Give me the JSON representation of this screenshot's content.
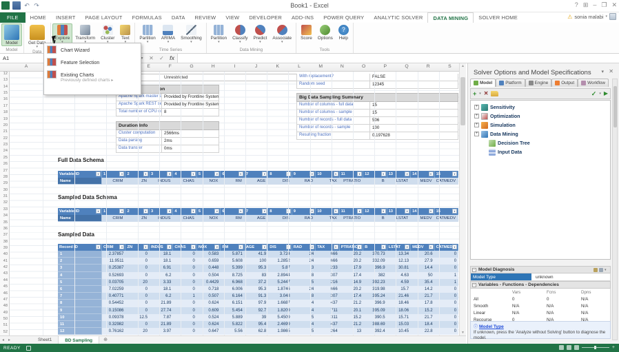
{
  "titlebar": {
    "title": "Book1 - Excel",
    "window_buttons": [
      "?",
      "⊞",
      "–",
      "❐",
      "✕"
    ]
  },
  "account": {
    "name": "sonia malabi",
    "dropdown_glyph": "▾",
    "warning_glyph": "⚠"
  },
  "ribbon_tabs": [
    {
      "label": "FILE",
      "file": true
    },
    {
      "label": "HOME"
    },
    {
      "label": "INSERT"
    },
    {
      "label": "PAGE LAYOUT"
    },
    {
      "label": "FORMULAS"
    },
    {
      "label": "DATA"
    },
    {
      "label": "REVIEW"
    },
    {
      "label": "VIEW"
    },
    {
      "label": "DEVELOPER"
    },
    {
      "label": "ADD-INS"
    },
    {
      "label": "POWER QUERY"
    },
    {
      "label": "ANALYTIC SOLVER"
    },
    {
      "label": "DATA MINING",
      "active": true
    },
    {
      "label": "SOLVER HOME"
    }
  ],
  "ribbon_groups": [
    {
      "label": "Model",
      "buttons": [
        {
          "label": "Model",
          "icon": "model",
          "large": true,
          "selected": true
        }
      ]
    },
    {
      "label": "Data",
      "buttons": [
        {
          "label": "Get Data",
          "icon": "get-data",
          "large": true,
          "dropdown": true
        }
      ]
    },
    {
      "label": "",
      "buttons": [
        {
          "label": "Explore",
          "icon": "explore",
          "dropdown": true,
          "selected": true
        },
        {
          "label": "Transform",
          "icon": "transform",
          "dropdown": true
        },
        {
          "label": "Cluster",
          "icon": "cluster",
          "dropdown": true
        },
        {
          "label": "Text",
          "icon": "text",
          "dropdown": true
        }
      ]
    },
    {
      "label": "Time Series",
      "buttons": [
        {
          "label": "Partition",
          "icon": "partition",
          "dropdown": true
        },
        {
          "label": "ARIMA",
          "icon": "arima",
          "dropdown": true
        },
        {
          "label": "Smoothing",
          "icon": "smoothing",
          "dropdown": true
        }
      ]
    },
    {
      "label": "Data Mining",
      "buttons": [
        {
          "label": "Partition",
          "icon": "partition",
          "dropdown": true
        },
        {
          "label": "Classify",
          "icon": "classify",
          "dropdown": true
        },
        {
          "label": "Predict",
          "icon": "predict",
          "dropdown": true
        },
        {
          "label": "Associate",
          "icon": "associate",
          "dropdown": true
        }
      ]
    },
    {
      "label": "Tools",
      "buttons": [
        {
          "label": "Score",
          "icon": "score"
        },
        {
          "label": "Options",
          "icon": "options"
        },
        {
          "label": "Help",
          "icon": "help"
        }
      ]
    }
  ],
  "explore_menu": {
    "items": [
      {
        "label": "Chart Wizard"
      },
      {
        "label": "Feature Selection"
      },
      {
        "label": "Existing Charts",
        "sub": "Previously defined charts",
        "submenu_glyph": "▸"
      }
    ]
  },
  "formula_bar": {
    "name_box": "A1",
    "cancel_glyph": "✕",
    "enter_glyph": "✓",
    "fx_label": "fx"
  },
  "grid": {
    "visible_columns": [
      "A",
      "E",
      "F",
      "G",
      "H",
      "I",
      "J",
      "K",
      "L",
      "M",
      "N",
      "O",
      "P",
      "Q",
      "R",
      "S"
    ],
    "row_start": 12,
    "row_end": 52
  },
  "cells": {
    "unrestricted": "Unrestricted"
  },
  "left_tables": {
    "cluster_info": {
      "title_visible": "on",
      "rows": [
        [
          "Apache Spark master URL",
          "Provided by Frontline Systems"
        ],
        [
          "Apache Spark REST server URL",
          "Provided by Frontline Systems"
        ],
        [
          "Total number of CPU cores used",
          "8"
        ]
      ]
    },
    "duration": {
      "title": "Duration Info",
      "rows": [
        [
          "Cluster computation",
          "2566ms"
        ],
        [
          "Data parsing",
          "2ms"
        ],
        [
          "Data transfer",
          "0ms"
        ]
      ]
    }
  },
  "right_tables": {
    "pre_rows": [
      [
        "With replacement?",
        "FALSE"
      ],
      [
        "Random seed",
        "12345"
      ]
    ],
    "summary": {
      "title": "Big Data Sampling Summary",
      "rows": [
        [
          "Number of columns - full data",
          "15"
        ],
        [
          "Number of columns - sample",
          "15"
        ],
        [
          "Number of records - full data",
          "506"
        ],
        [
          "Number of records - sample",
          "100"
        ],
        [
          "Resulting fraction",
          "0.197628"
        ]
      ]
    }
  },
  "sections": {
    "full_schema": "Full Data Schema",
    "sampled_schema": "Sampled Data Schema",
    "sampled_data": "Sampled Data"
  },
  "schema": {
    "id_header": "Variable ID",
    "name_header": "Name",
    "ids": [
      "1",
      "2",
      "3",
      "4",
      "5",
      "6",
      "7",
      "8",
      "9",
      "10",
      "11",
      "12",
      "13",
      "14",
      "15"
    ],
    "names": [
      "CRIM",
      "ZN",
      "INDUS",
      "CHAS",
      "NOX",
      "RM",
      "AGE",
      "DIS",
      "RAD",
      "TAX",
      "PTRATIO",
      "B",
      "LSTAT",
      "MEDV",
      "CATMEDV"
    ]
  },
  "sampled": {
    "id_header": "Record ID",
    "columns": [
      "CRIM",
      "ZN",
      "INDUS",
      "CHAS",
      "NOX",
      "RM",
      "AGE",
      "DIS",
      "RAD",
      "TAX",
      "PTRATIO",
      "B",
      "LSTAT",
      "MEDV",
      "CATMEDV"
    ],
    "rows": [
      {
        "id": "1",
        "values": [
          "2.37857",
          "0",
          "18.1",
          "0",
          "0.583",
          "5.871",
          "41.9",
          "3.724",
          "24",
          "666",
          "20.2",
          "370.73",
          "13.34",
          "20.6",
          "0"
        ]
      },
      {
        "id": "2",
        "values": [
          "11.9511",
          "0",
          "18.1",
          "0",
          "0.659",
          "5.608",
          "100",
          "1.2852",
          "24",
          "666",
          "20.2",
          "332.09",
          "12.13",
          "27.9",
          "0"
        ]
      },
      {
        "id": "3",
        "values": [
          "0.25387",
          "0",
          "6.91",
          "0",
          "0.448",
          "5.399",
          "95.3",
          "5.87",
          "3",
          "233",
          "17.9",
          "396.9",
          "30.81",
          "14.4",
          "0"
        ]
      },
      {
        "id": "4",
        "values": [
          "0.52693",
          "0",
          "6.2",
          "0",
          "0.504",
          "8.725",
          "83",
          "2.8944",
          "8",
          "307",
          "17.4",
          "382",
          "4.63",
          "50",
          "1"
        ]
      },
      {
        "id": "5",
        "values": [
          "0.03705",
          "20",
          "3.33",
          "0",
          "0.4429",
          "6.968",
          "37.2",
          "5.2447",
          "5",
          "216",
          "14.9",
          "392.23",
          "4.59",
          "35.4",
          "1"
        ]
      },
      {
        "id": "6",
        "values": [
          "7.02259",
          "0",
          "18.1",
          "0",
          "0.718",
          "6.006",
          "95.3",
          "1.8746",
          "24",
          "666",
          "20.2",
          "319.98",
          "15.7",
          "14.2",
          "0"
        ]
      },
      {
        "id": "7",
        "values": [
          "0.40771",
          "0",
          "6.2",
          "1",
          "0.507",
          "6.164",
          "91.3",
          "3.048",
          "8",
          "307",
          "17.4",
          "395.24",
          "21.46",
          "21.7",
          "0"
        ]
      },
      {
        "id": "8",
        "values": [
          "0.54452",
          "0",
          "21.89",
          "0",
          "0.624",
          "6.151",
          "97.9",
          "1.6687",
          "4",
          "437",
          "21.2",
          "396.9",
          "18.46",
          "17.8",
          "0"
        ]
      },
      {
        "id": "9",
        "values": [
          "0.15086",
          "0",
          "27.74",
          "0",
          "0.609",
          "5.454",
          "92.7",
          "1.8209",
          "4",
          "711",
          "20.1",
          "395.09",
          "18.06",
          "15.2",
          "0"
        ]
      },
      {
        "id": "10",
        "values": [
          "0.09378",
          "12.5",
          "7.87",
          "0",
          "0.524",
          "5.889",
          "39",
          "5.4509",
          "5",
          "311",
          "15.2",
          "390.5",
          "15.71",
          "21.7",
          "0"
        ]
      },
      {
        "id": "11",
        "values": [
          "0.32982",
          "0",
          "21.89",
          "0",
          "0.624",
          "5.822",
          "95.4",
          "2.4699",
          "4",
          "437",
          "21.2",
          "388.69",
          "15.03",
          "18.4",
          "0"
        ]
      },
      {
        "id": "12",
        "values": [
          "0.76162",
          "20",
          "3.97",
          "0",
          "0.647",
          "5.56",
          "62.8",
          "1.9865",
          "5",
          "264",
          "13",
          "392.4",
          "10.45",
          "22.8",
          "0"
        ]
      }
    ]
  },
  "sheet_tabs": {
    "nav_glyphs": [
      "◂",
      "▸"
    ],
    "tabs": [
      {
        "label": "Sheet1"
      },
      {
        "label": "BD Sampling",
        "active": true
      }
    ],
    "add_glyph": "⊕"
  },
  "status_bar": {
    "mode": "READY"
  },
  "task_pane": {
    "title": "Solver Options and Model Specifications",
    "menu_glyph": "▾",
    "close_glyph": "✕",
    "tabs": [
      {
        "label": "Model",
        "active": true
      },
      {
        "label": "Platform"
      },
      {
        "label": "Engine"
      },
      {
        "label": "Output"
      },
      {
        "label": "Workflow"
      }
    ],
    "tree": [
      {
        "label": "Sensitivity",
        "icon": "sensitivity",
        "expander": "+"
      },
      {
        "label": "Optimization",
        "icon": "optimization",
        "expander": "+"
      },
      {
        "label": "Simulation",
        "icon": "simulation",
        "expander": "+"
      },
      {
        "label": "Data Mining",
        "icon": "data-mining",
        "expander": "+"
      },
      {
        "label": "Decision Tree",
        "icon": "decision-tree",
        "child": true
      },
      {
        "label": "Input Data",
        "icon": "input-data",
        "child": true
      }
    ],
    "diagnosis": {
      "title": "Model Diagnosis",
      "model_type_label": "Model Type",
      "model_type_value": "unknown",
      "vfd_title": "Variables - Functions - Dependencies",
      "table": {
        "cols": [
          "Vars",
          "Fcns",
          "Dpns"
        ],
        "rows": [
          [
            "All",
            "0",
            "0",
            "N/A"
          ],
          [
            "Smooth",
            "N/A",
            "N/A",
            "N/A"
          ],
          [
            "Linear",
            "N/A",
            "N/A",
            "N/A"
          ],
          [
            "Recourse",
            "0",
            "N/A",
            "N/A"
          ]
        ]
      },
      "note_link": "Model Type",
      "note_text": "If unknown, press the 'Analyze without Solving' button to diagnose the model."
    }
  }
}
